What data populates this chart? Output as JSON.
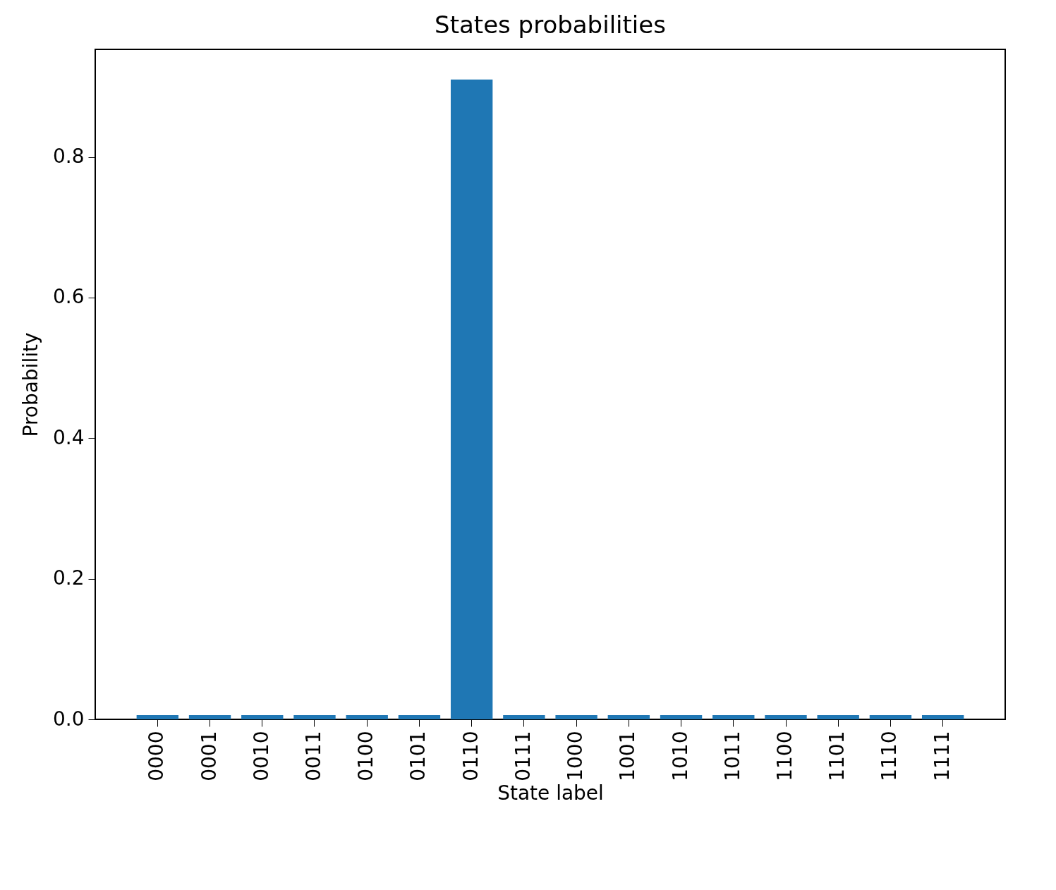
{
  "chart_data": {
    "type": "bar",
    "title": "States probabilities",
    "xlabel": "State label",
    "ylabel": "Probability",
    "categories": [
      "0000",
      "0001",
      "0010",
      "0011",
      "0100",
      "0101",
      "0110",
      "0111",
      "1000",
      "1001",
      "1010",
      "1011",
      "1100",
      "1101",
      "1110",
      "1111"
    ],
    "values": [
      0.006,
      0.006,
      0.006,
      0.006,
      0.006,
      0.006,
      0.91,
      0.006,
      0.006,
      0.006,
      0.006,
      0.006,
      0.006,
      0.006,
      0.006,
      0.006
    ],
    "color": "#1f77b4",
    "ylim": [
      0,
      0.953
    ],
    "yticks": [
      {
        "value": 0,
        "label": "0.0"
      },
      0.2,
      0.4,
      0.6,
      0.8
    ],
    "grid": false
  }
}
